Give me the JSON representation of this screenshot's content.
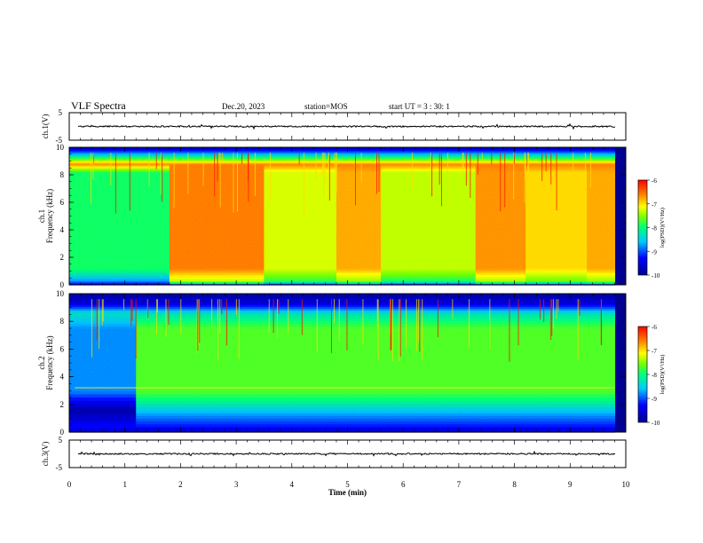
{
  "header": {
    "title": "VLF Spectra",
    "date": "Dec.20, 2023",
    "station": "station=MOS",
    "start": "start UT =   3 : 30: 1"
  },
  "chart_data": [
    {
      "type": "line",
      "panel": "ch1-waveform",
      "ylabel": "ch.1(V)",
      "ylim": [
        -5,
        5
      ],
      "yticks": [
        "5",
        "-5"
      ],
      "xlim": [
        0,
        10
      ],
      "description_values": {
        "baseline_V": 0
      }
    },
    {
      "type": "heatmap",
      "panel": "ch1-spectrogram",
      "ylabel": "ch.1 Frequency (kHz)",
      "ylim": [
        0,
        10
      ],
      "yticks": [
        "0",
        "2",
        "4",
        "6",
        "8",
        "10"
      ],
      "xlim": [
        0,
        10
      ],
      "colorbar": {
        "label": "log(PSD)(V²/Hz)",
        "range": [
          -10,
          -6
        ],
        "ticks": [
          "-6",
          "-7",
          "-8",
          "-9",
          "-10"
        ]
      },
      "time_segments_min": [
        {
          "x0": 0.0,
          "x1": 1.8,
          "level": -8.2
        },
        {
          "x0": 1.8,
          "x1": 3.5,
          "level": -6.6
        },
        {
          "x0": 3.5,
          "x1": 4.8,
          "level": -7.3
        },
        {
          "x0": 4.8,
          "x1": 5.6,
          "level": -6.8
        },
        {
          "x0": 5.6,
          "x1": 7.3,
          "level": -7.4
        },
        {
          "x0": 7.3,
          "x1": 8.2,
          "level": -6.7
        },
        {
          "x0": 8.2,
          "x1": 9.3,
          "level": -7.0
        },
        {
          "x0": 9.3,
          "x1": 9.8,
          "level": -6.8
        }
      ]
    },
    {
      "type": "heatmap",
      "panel": "ch2-spectrogram",
      "ylabel": "ch.2 Frequency (kHz)",
      "ylim": [
        0,
        10
      ],
      "yticks": [
        "0",
        "2",
        "4",
        "6",
        "8",
        "10"
      ],
      "xlim": [
        0,
        10
      ],
      "colorbar": {
        "label": "log(PSD)(V²/Hz)",
        "range": [
          -10,
          -6
        ],
        "ticks": [
          "-6",
          "-7",
          "-8",
          "-9",
          "-10"
        ]
      },
      "time_segments_min": [
        {
          "x0": 0.0,
          "x1": 1.2,
          "level": -9.0
        },
        {
          "x0": 1.2,
          "x1": 9.8,
          "level": -7.9
        }
      ],
      "line_kHz": 3.2
    },
    {
      "type": "line",
      "panel": "ch3-waveform",
      "ylabel": "ch.3(V)",
      "ylim": [
        -5,
        5
      ],
      "yticks": [
        "5",
        "-5"
      ],
      "xlim": [
        0,
        10
      ],
      "xlabel": "Time (min)",
      "xticks": [
        "0",
        "1",
        "2",
        "3",
        "4",
        "5",
        "6",
        "7",
        "8",
        "9",
        "10"
      ],
      "description_values": {
        "baseline_V": 0
      }
    }
  ],
  "colors": {
    "axis": "#000000",
    "colormap": [
      "#0000a0",
      "#0000ff",
      "#00c8ff",
      "#00ff80",
      "#80ff00",
      "#ffff00",
      "#ff8000",
      "#ff0000"
    ],
    "background_band": "#00009a"
  }
}
